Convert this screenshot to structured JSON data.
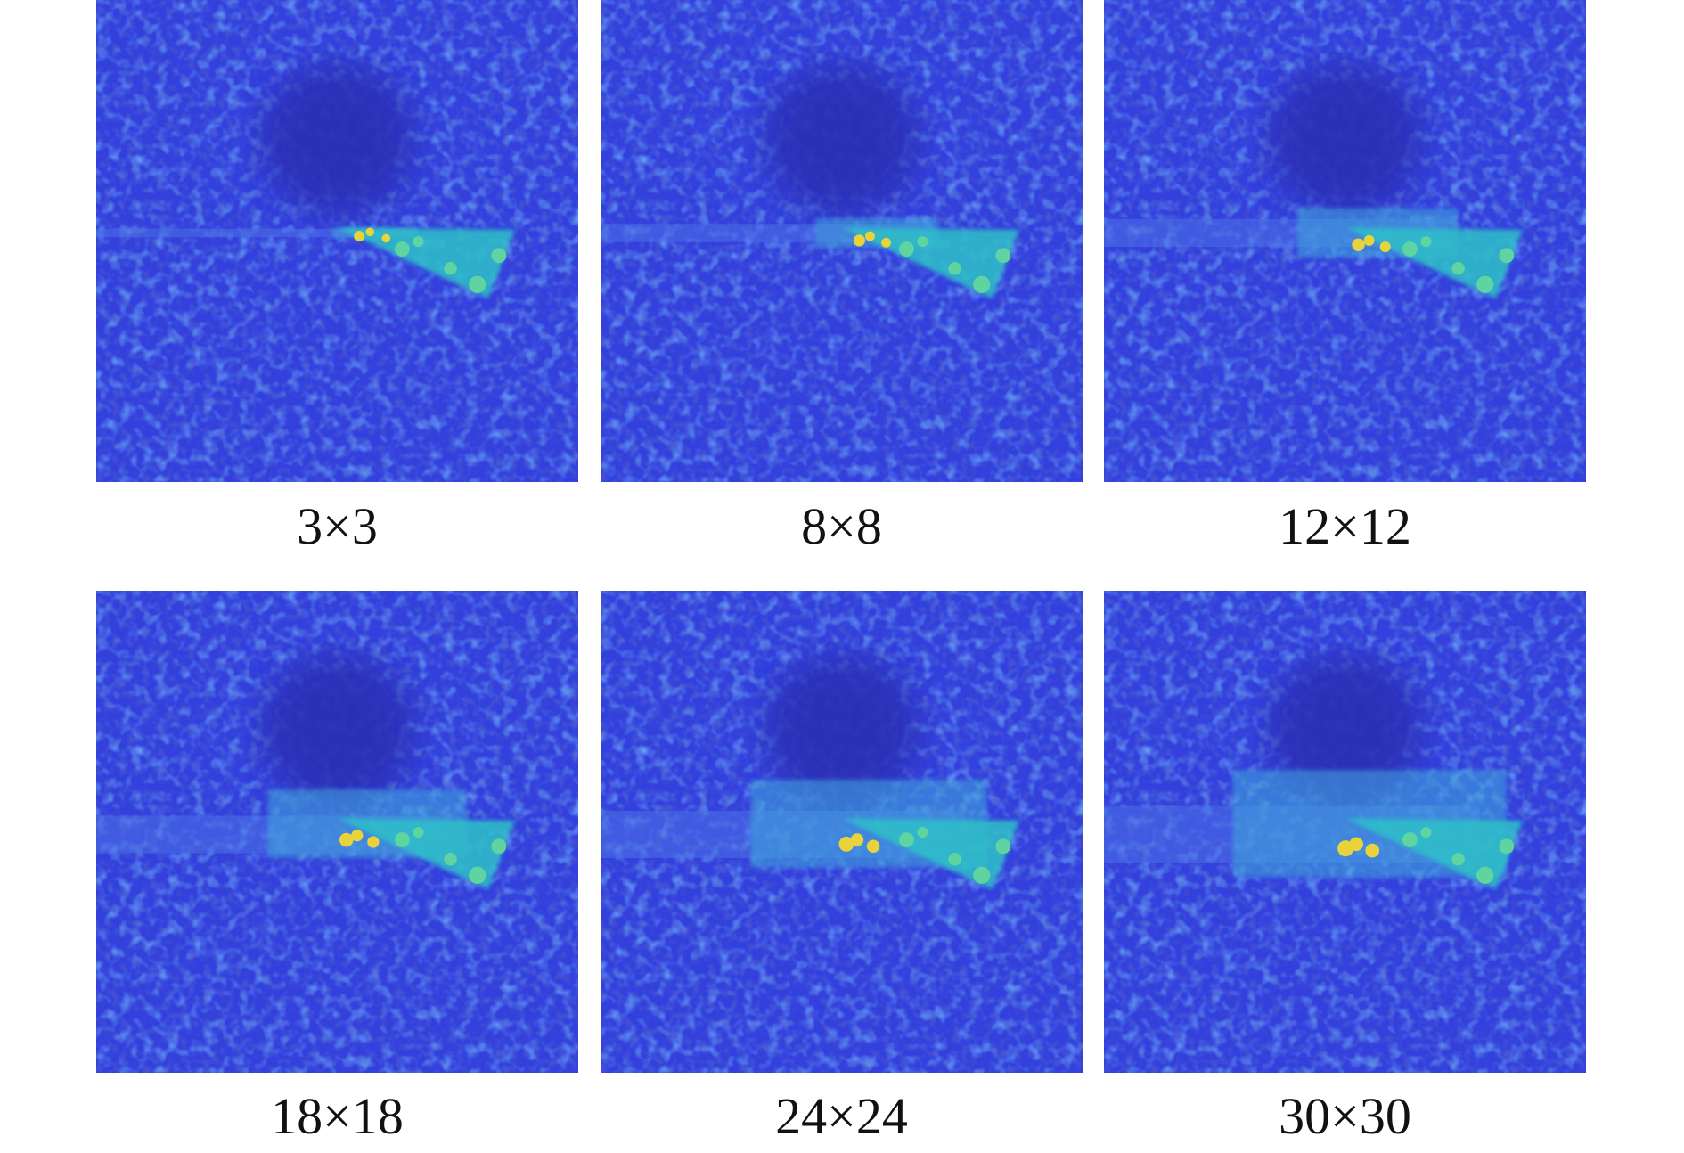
{
  "panels": [
    {
      "caption": "3×3"
    },
    {
      "caption": "8×8"
    },
    {
      "caption": "12×12"
    },
    {
      "caption": "18×18"
    },
    {
      "caption": "24×24"
    },
    {
      "caption": "30×30"
    }
  ]
}
